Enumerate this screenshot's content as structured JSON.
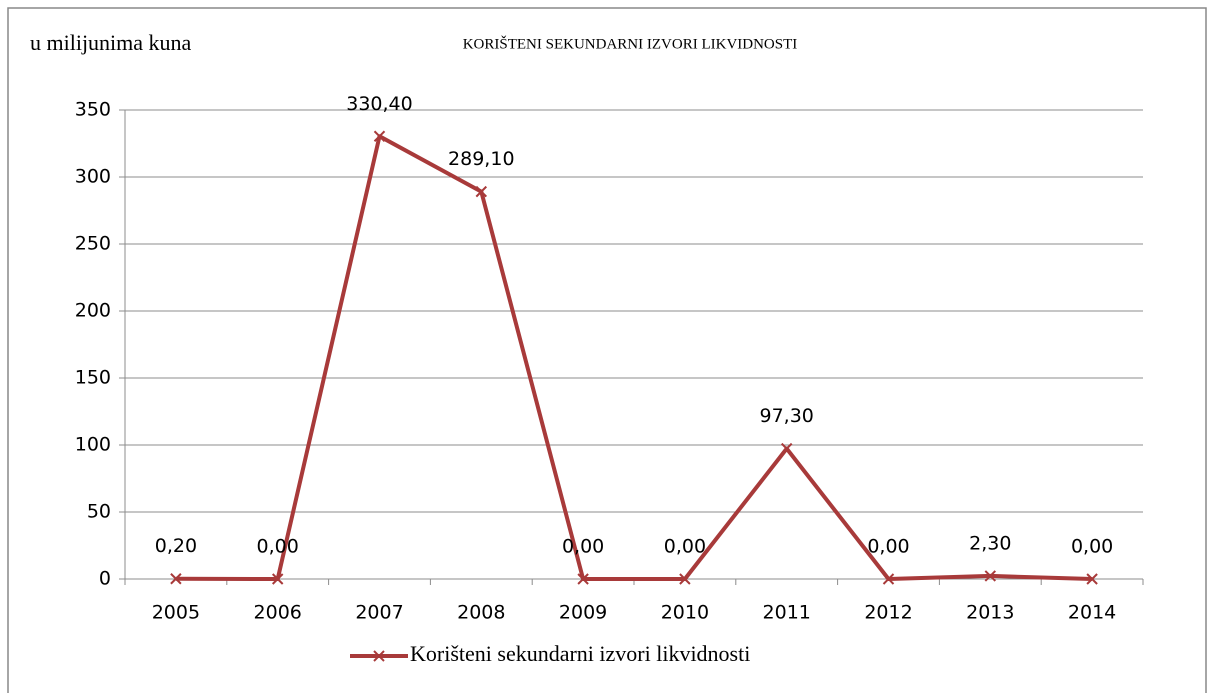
{
  "chart_data": {
    "type": "line",
    "title": "KORIŠTENI SEKUNDARNI IZVORI LIKVIDNOSTI",
    "y_label": "u milijunima kuna",
    "categories": [
      "2005",
      "2006",
      "2007",
      "2008",
      "2009",
      "2010",
      "2011",
      "2012",
      "2013",
      "2014"
    ],
    "series": [
      {
        "name": "Korišteni sekundarni izvori likvidnosti",
        "color": "#a83a3a",
        "values": [
          0.2,
          0,
          330.4,
          289.1,
          0,
          0,
          97.3,
          0,
          2.3,
          0
        ],
        "value_labels": [
          "0,20",
          "0,00",
          "330,40",
          "289,10",
          "0,00",
          "0,00",
          "97,30",
          "0,00",
          "2,30",
          "0,00"
        ]
      }
    ],
    "ylim": [
      0,
      350
    ],
    "yticks": [
      0,
      50,
      100,
      150,
      200,
      250,
      300,
      350
    ],
    "grid": true,
    "legend": "bottom"
  }
}
